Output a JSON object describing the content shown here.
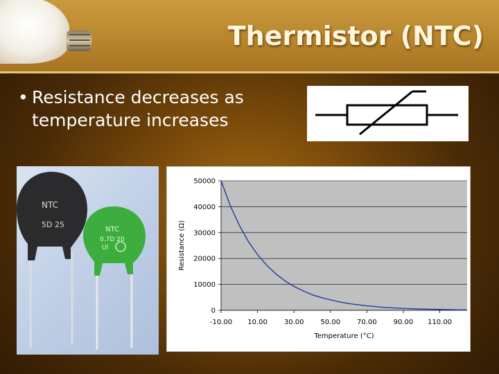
{
  "slide": {
    "title": "Thermistor (NTC)",
    "bullet_marker": "•",
    "bullet_line1": "Resistance decreases as",
    "bullet_line2": "temperature increases"
  },
  "photo": {
    "large_label_line1": "NTC",
    "large_label_line2": "5D 25",
    "small_label_line1": "NTC",
    "small_label_line2": "0.7D 20",
    "colors": {
      "large_body": "#2b2b2d",
      "small_body": "#3dae3e",
      "background": "#c8d6ea"
    }
  },
  "icons": {
    "decor": "light-bulb-icon",
    "schematic": "thermistor-symbol-icon"
  },
  "chart_data": {
    "type": "line",
    "title": "",
    "xlabel": "Temperature (°C)",
    "ylabel": "Resistance (Ω)",
    "xlim": [
      -10,
      125
    ],
    "ylim": [
      0,
      50000
    ],
    "x_ticks": [
      -10,
      10,
      30,
      50,
      70,
      90,
      110
    ],
    "x_tick_labels": [
      "-10.00",
      "10.00",
      "30.00",
      "50.00",
      "70.00",
      "90.00",
      "110.00"
    ],
    "y_ticks": [
      0,
      10000,
      20000,
      30000,
      40000,
      50000
    ],
    "y_tick_labels": [
      "0",
      "10000",
      "20000",
      "30000",
      "40000",
      "50000"
    ],
    "grid": true,
    "plot_background": "#c0c0c0",
    "series": [
      {
        "color": "#1f3b9a",
        "x": [
          -10,
          -5,
          0,
          5,
          10,
          15,
          20,
          25,
          30,
          35,
          40,
          45,
          50,
          55,
          60,
          70,
          80,
          90,
          100,
          110,
          120,
          125
        ],
        "y": [
          50000,
          40500,
          32800,
          26500,
          21500,
          17400,
          14100,
          11400,
          9200,
          7500,
          6000,
          4900,
          4000,
          3200,
          2600,
          1700,
          1100,
          720,
          470,
          310,
          200,
          160
        ]
      }
    ]
  }
}
